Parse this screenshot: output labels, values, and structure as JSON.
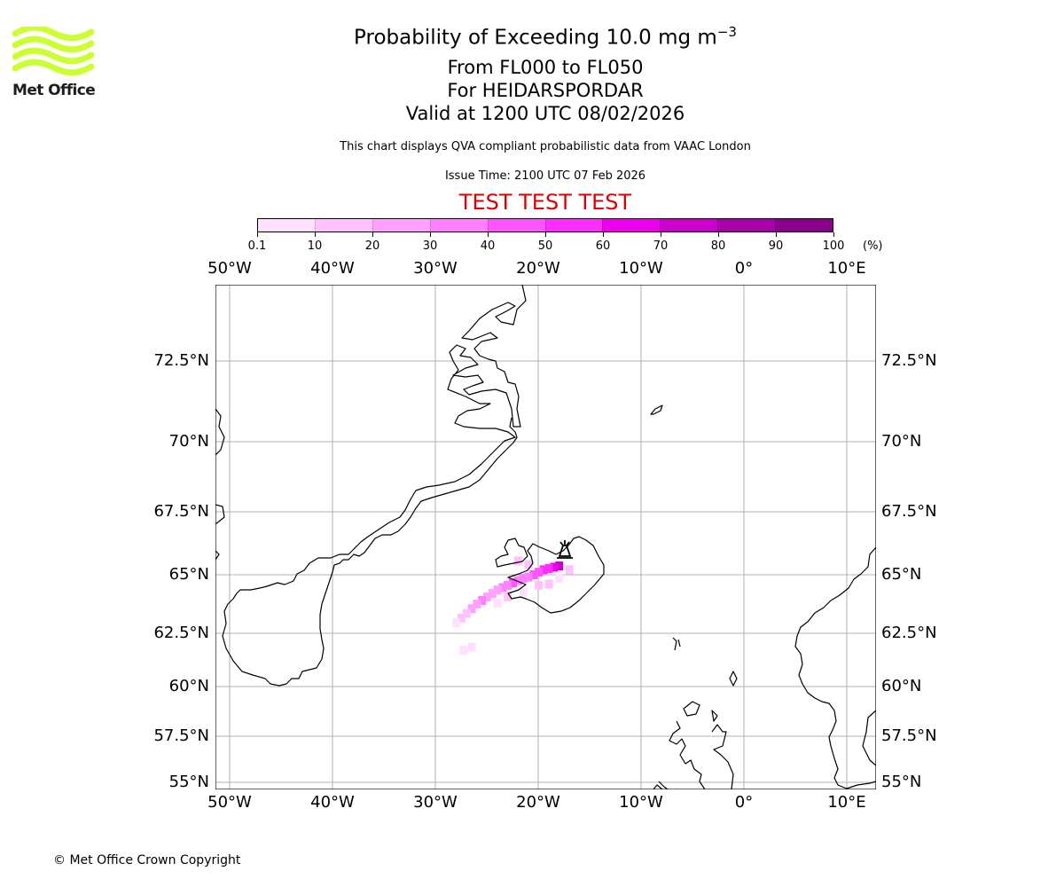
{
  "logo": {
    "text": "Met Office",
    "color": "#ccff33"
  },
  "title": {
    "main_prefix": "Probability of Exceeding 10.0 mg m",
    "main_exponent": "−3",
    "line2": "From FL000 to FL050",
    "line3": "For HEIDARSPORDAR",
    "line4": "Valid at 1200 UTC 08/02/2026"
  },
  "disclaimer": "This chart displays QVA compliant probabilistic data from VAAC London",
  "issue_time": "Issue Time: 2100 UTC 07 Feb 2026",
  "test_banner": {
    "text": "TEST TEST TEST",
    "color": "#dd0000"
  },
  "colorbar": {
    "ticks": [
      "0.1",
      "10",
      "20",
      "30",
      "40",
      "50",
      "60",
      "70",
      "80",
      "90",
      "100"
    ],
    "unit": "(%)",
    "colors": [
      "#ffe1ff",
      "#ffc2ff",
      "#ffa2ff",
      "#ff80ff",
      "#ff55ff",
      "#ff2cff",
      "#ee00ee",
      "#cc00cc",
      "#aa00aa",
      "#8b008b",
      "#660066"
    ]
  },
  "map": {
    "lon_labels": [
      "50°W",
      "40°W",
      "30°W",
      "20°W",
      "10°W",
      "0°",
      "10°E"
    ],
    "lat_labels": [
      "72.5°N",
      "70°N",
      "67.5°N",
      "65°N",
      "62.5°N",
      "60°N",
      "57.5°N",
      "55°N"
    ],
    "volcano": "HEIDARSPORDAR",
    "plume_cells": [
      {
        "lon": -18.0,
        "lat": 65.35,
        "bin": 7
      },
      {
        "lon": -18.5,
        "lat": 65.3,
        "bin": 6
      },
      {
        "lon": -19.0,
        "lat": 65.25,
        "bin": 5
      },
      {
        "lon": -19.5,
        "lat": 65.2,
        "bin": 5
      },
      {
        "lon": -20.0,
        "lat": 65.1,
        "bin": 4
      },
      {
        "lon": -20.5,
        "lat": 65.0,
        "bin": 4
      },
      {
        "lon": -21.0,
        "lat": 64.9,
        "bin": 3
      },
      {
        "lon": -21.5,
        "lat": 64.85,
        "bin": 3
      },
      {
        "lon": -22.0,
        "lat": 64.75,
        "bin": 3
      },
      {
        "lon": -22.5,
        "lat": 64.65,
        "bin": 4
      },
      {
        "lon": -23.0,
        "lat": 64.55,
        "bin": 3
      },
      {
        "lon": -23.5,
        "lat": 64.45,
        "bin": 3
      },
      {
        "lon": -24.0,
        "lat": 64.35,
        "bin": 2
      },
      {
        "lon": -24.5,
        "lat": 64.2,
        "bin": 2
      },
      {
        "lon": -25.0,
        "lat": 64.05,
        "bin": 2
      },
      {
        "lon": -25.5,
        "lat": 63.9,
        "bin": 3
      },
      {
        "lon": -26.0,
        "lat": 63.75,
        "bin": 2
      },
      {
        "lon": -26.5,
        "lat": 63.55,
        "bin": 2
      },
      {
        "lon": -27.0,
        "lat": 63.35,
        "bin": 1
      },
      {
        "lon": -27.5,
        "lat": 63.15,
        "bin": 1
      },
      {
        "lon": -28.0,
        "lat": 62.95,
        "bin": 0
      },
      {
        "lon": -27.3,
        "lat": 61.7,
        "bin": 0
      },
      {
        "lon": -26.5,
        "lat": 61.85,
        "bin": 0
      },
      {
        "lon": -21.0,
        "lat": 65.4,
        "bin": 1
      },
      {
        "lon": -20.0,
        "lat": 64.55,
        "bin": 1
      },
      {
        "lon": -19.0,
        "lat": 64.6,
        "bin": 1
      },
      {
        "lon": -18.0,
        "lat": 64.85,
        "bin": 0
      },
      {
        "lon": -17.0,
        "lat": 65.2,
        "bin": 1
      },
      {
        "lon": -22.0,
        "lat": 65.55,
        "bin": 1
      },
      {
        "lon": -23.0,
        "lat": 64.05,
        "bin": 1
      },
      {
        "lon": -24.0,
        "lat": 63.8,
        "bin": 0
      },
      {
        "lon": -21.5,
        "lat": 64.25,
        "bin": 0
      }
    ]
  },
  "copyright": "© Met Office Crown Copyright"
}
